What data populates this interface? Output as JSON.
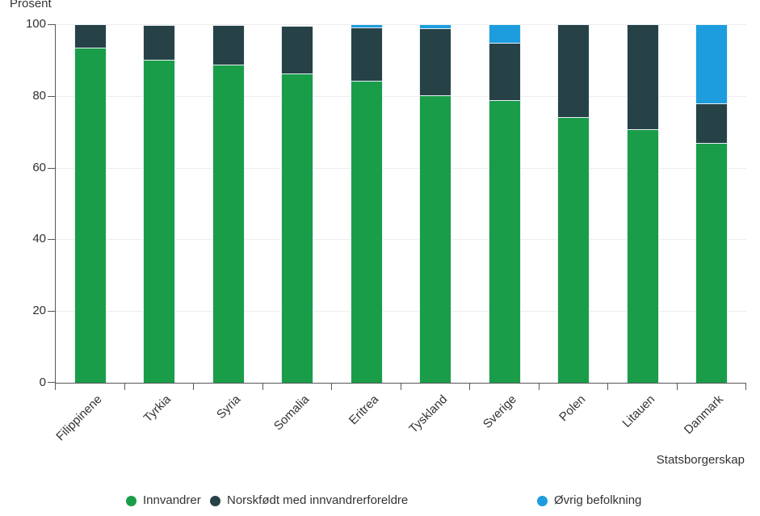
{
  "chart_data": {
    "type": "bar",
    "stacked": true,
    "title": "",
    "ylabel": "Prosent",
    "xlabel": "Statsborgerskap",
    "ylim": [
      0,
      100
    ],
    "yticks": [
      0,
      20,
      40,
      60,
      80,
      100
    ],
    "grid": "horizontal",
    "legend_position": "bottom",
    "categories": [
      "Filippinene",
      "Tyrkia",
      "Syria",
      "Somalia",
      "Eritrea",
      "Tyskland",
      "Sverige",
      "Polen",
      "Litauen",
      "Danmark"
    ],
    "series": [
      {
        "name": "Innvandrer",
        "color": "#1a9d49",
        "values": [
          93.5,
          90.1,
          88.7,
          86.3,
          84.3,
          80.1,
          78.9,
          74.1,
          70.8,
          66.8
        ]
      },
      {
        "name": "Norskfødt med innvandrerforeldre",
        "color": "#274247",
        "values": [
          6.4,
          9.7,
          11.0,
          13.3,
          14.9,
          18.7,
          15.9,
          25.8,
          29.1,
          11.2
        ]
      },
      {
        "name": "Øvrig befolkning",
        "color": "#1d9dde",
        "values": [
          0,
          0,
          0,
          0,
          0.8,
          1.2,
          5.2,
          0,
          0,
          22.0
        ]
      }
    ]
  },
  "style": {
    "axis_color": "#57585a",
    "gridline_color": "#ededed",
    "label_color": "#333333",
    "segment_border_color": "#e7f1f5"
  }
}
